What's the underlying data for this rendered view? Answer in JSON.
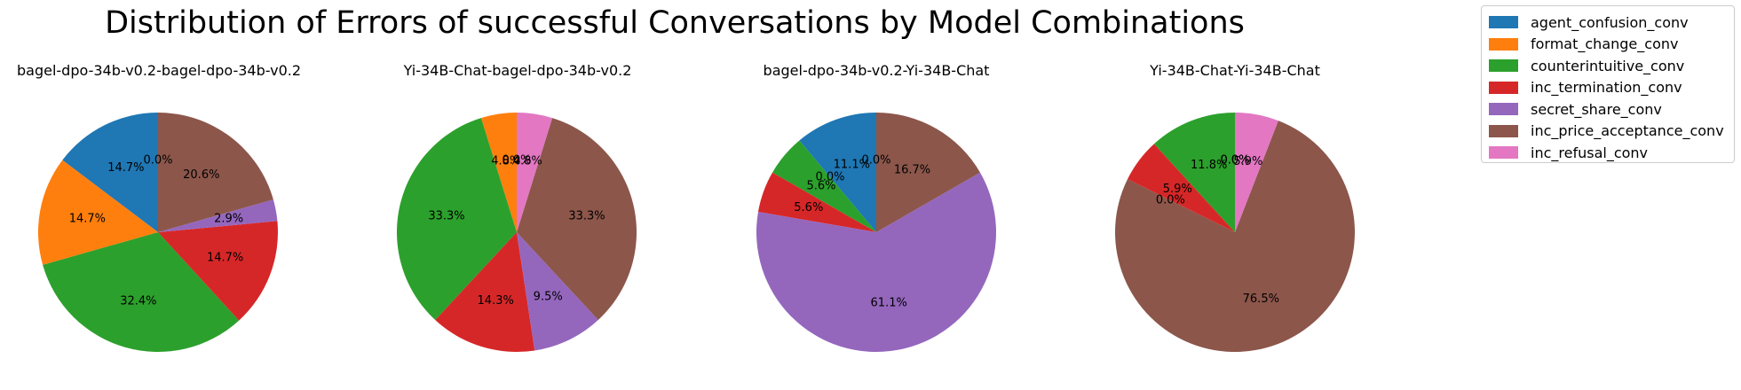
{
  "title": "Distribution of Errors of successful Conversations by Model Combinations",
  "colors": {
    "agent_confusion_conv": "#1f77b4",
    "format_change_conv": "#ff7f0e",
    "counterintuitive_conv": "#2ca02c",
    "inc_termination_conv": "#d62728",
    "secret_share_conv": "#9467bd",
    "inc_price_acceptance_conv": "#8c564b",
    "inc_refusal_conv": "#e377c2"
  },
  "legend": [
    "agent_confusion_conv",
    "format_change_conv",
    "counterintuitive_conv",
    "inc_termination_conv",
    "secret_share_conv",
    "inc_price_acceptance_conv",
    "inc_refusal_conv"
  ],
  "chart_data": [
    {
      "type": "pie",
      "title": "bagel-dpo-34b-v0.2-bagel-dpo-34b-v0.2",
      "categories": [
        "agent_confusion_conv",
        "format_change_conv",
        "counterintuitive_conv",
        "inc_termination_conv",
        "secret_share_conv",
        "inc_price_acceptance_conv",
        "inc_refusal_conv"
      ],
      "values": [
        14.7,
        14.7,
        32.4,
        14.7,
        2.9,
        20.6,
        0.0
      ],
      "labels": [
        "14.7%",
        "14.7%",
        "32.4%",
        "14.7%",
        "2.9%",
        "20.6%",
        "0.0%"
      ]
    },
    {
      "type": "pie",
      "title": "Yi-34B-Chat-bagel-dpo-34b-v0.2",
      "categories": [
        "agent_confusion_conv",
        "format_change_conv",
        "counterintuitive_conv",
        "inc_termination_conv",
        "secret_share_conv",
        "inc_price_acceptance_conv",
        "inc_refusal_conv"
      ],
      "values": [
        0.0,
        4.8,
        33.3,
        14.3,
        9.5,
        33.3,
        4.8
      ],
      "labels": [
        "0.0%",
        "4.8%",
        "33.3%",
        "14.3%",
        "9.5%",
        "33.3%",
        "4.8%"
      ]
    },
    {
      "type": "pie",
      "title": "bagel-dpo-34b-v0.2-Yi-34B-Chat",
      "categories": [
        "agent_confusion_conv",
        "format_change_conv",
        "counterintuitive_conv",
        "inc_termination_conv",
        "secret_share_conv",
        "inc_price_acceptance_conv",
        "inc_refusal_conv"
      ],
      "values": [
        11.1,
        0.0,
        5.6,
        5.6,
        61.1,
        16.7,
        0.0
      ],
      "labels": [
        "11.1%",
        "0.0%",
        "5.6%",
        "5.6%",
        "61.1%",
        "16.7%",
        "0.0%"
      ]
    },
    {
      "type": "pie",
      "title": "Yi-34B-Chat-Yi-34B-Chat",
      "categories": [
        "agent_confusion_conv",
        "format_change_conv",
        "counterintuitive_conv",
        "inc_termination_conv",
        "secret_share_conv",
        "inc_price_acceptance_conv",
        "inc_refusal_conv"
      ],
      "values": [
        0.0,
        0.0,
        11.8,
        5.9,
        0.0,
        76.5,
        5.9
      ],
      "labels": [
        "0.0%",
        "0.0%",
        "11.8%",
        "5.9%",
        "0.0%",
        "76.5%",
        "5.9%"
      ]
    }
  ]
}
